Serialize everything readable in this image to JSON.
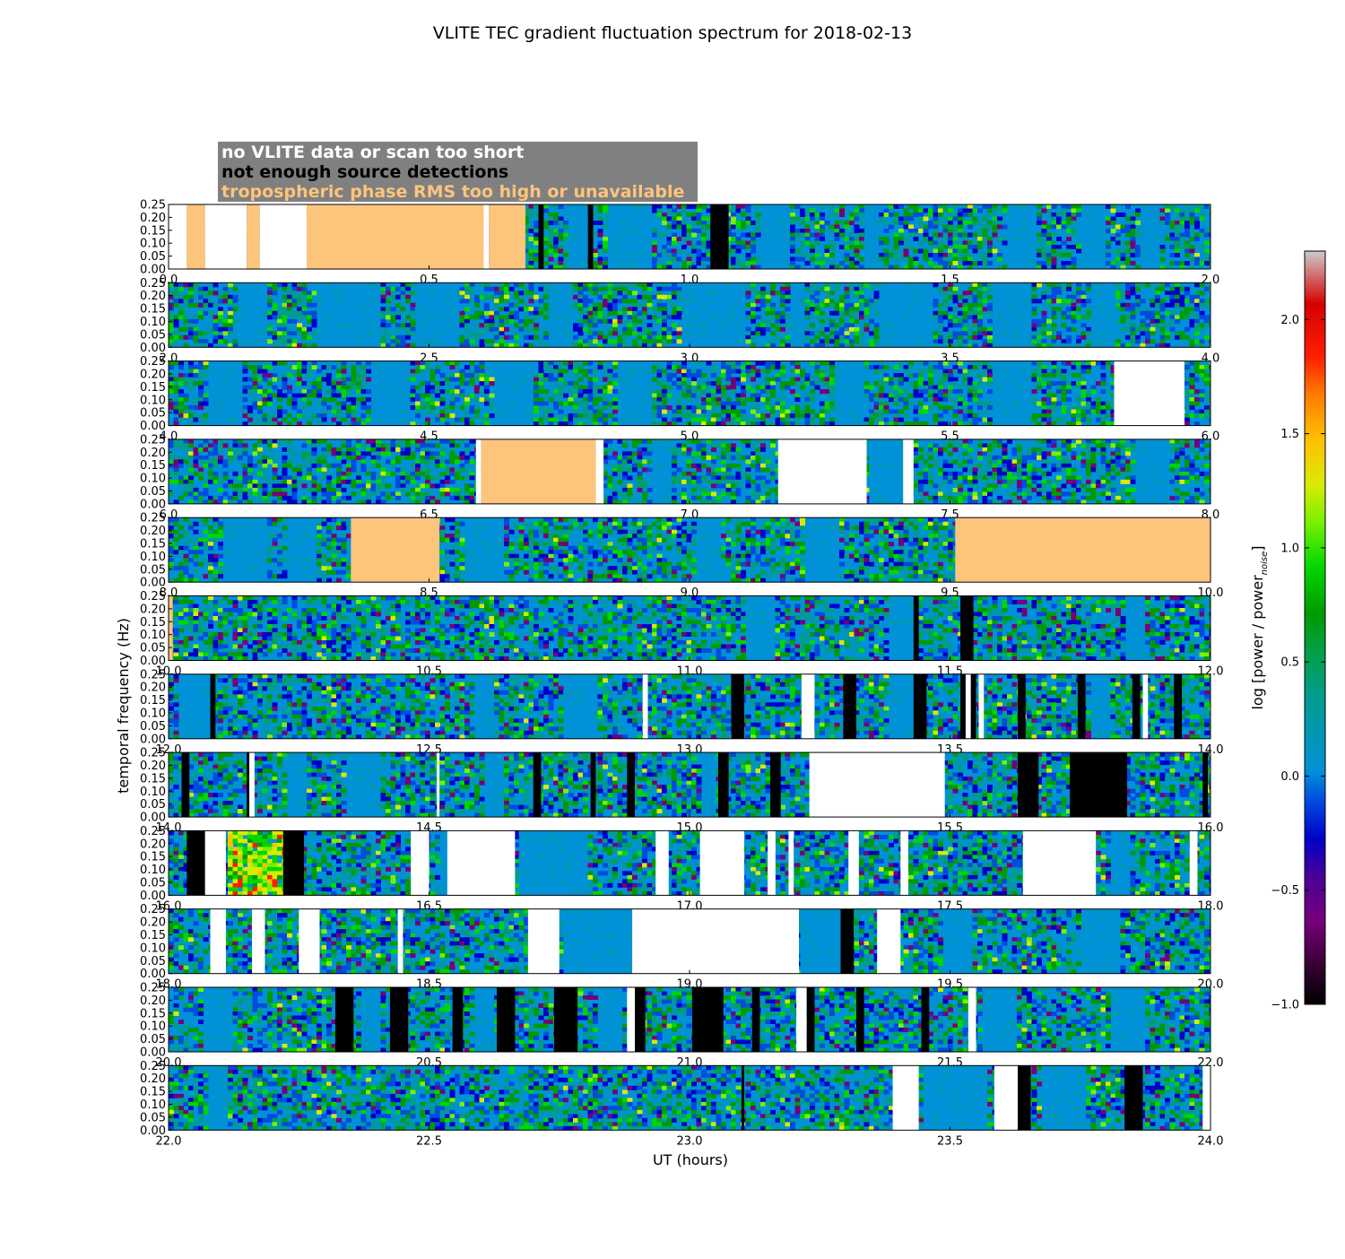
{
  "colors": {
    "no_data": "#ffffff",
    "no_detect": "#000000",
    "tropo": "#fdc47c",
    "baseline": "#0091d7",
    "legend_bg": "#808080"
  },
  "chart_data": {
    "type": "heatmap",
    "title": "VLITE TEC gradient fluctuation spectrum for 2018-02-13",
    "xlabel": "UT (hours)",
    "ylabel": "temporal frequency (Hz)",
    "yticks": [
      "0.00",
      "0.05",
      "0.10",
      "0.15",
      "0.20",
      "0.25"
    ],
    "ylim": [
      0,
      0.25
    ],
    "colorbar": {
      "label": "log [power / power",
      "label_sub": "noise",
      "ticks": [
        "2.0",
        "1.5",
        "1.0",
        "0.5",
        "0.0",
        "−0.5",
        "−1.0"
      ],
      "range": [
        -1.0,
        2.3
      ]
    },
    "legend": [
      {
        "label": "no VLITE data or scan too short",
        "color": "#ffffff"
      },
      {
        "label": "not enough source detections",
        "color": "#000000"
      },
      {
        "label": "tropospheric phase RMS too high or unavailable",
        "color": "#fdc47c"
      }
    ],
    "panels": [
      {
        "start": 0,
        "ticks": [
          "0.0",
          "0.5",
          "1.0",
          "1.5",
          "2.0"
        ],
        "masks": [
          {
            "from": 0.0,
            "to": 0.035,
            "kind": "no_data"
          },
          {
            "from": 0.035,
            "to": 0.07,
            "kind": "tropo"
          },
          {
            "from": 0.07,
            "to": 0.15,
            "kind": "no_data"
          },
          {
            "from": 0.15,
            "to": 0.175,
            "kind": "tropo"
          },
          {
            "from": 0.175,
            "to": 0.265,
            "kind": "no_data"
          },
          {
            "from": 0.265,
            "to": 0.605,
            "kind": "tropo"
          },
          {
            "from": 0.605,
            "to": 0.615,
            "kind": "no_data"
          },
          {
            "from": 0.615,
            "to": 0.685,
            "kind": "tropo"
          },
          {
            "from": 0.71,
            "to": 0.72,
            "kind": "no_detect"
          },
          {
            "from": 0.805,
            "to": 0.815,
            "kind": "no_detect"
          },
          {
            "from": 1.04,
            "to": 1.075,
            "kind": "no_detect"
          }
        ],
        "quiet": [
          [
            0.76,
            0.8
          ],
          [
            0.84,
            0.92
          ],
          [
            1.13,
            1.19
          ],
          [
            1.33,
            1.36
          ],
          [
            1.6,
            1.66
          ],
          [
            1.75,
            1.79
          ],
          [
            1.86,
            1.9
          ]
        ]
      },
      {
        "start": 2,
        "ticks": [
          "2.0",
          "2.5",
          "3.0",
          "3.5",
          "4.0"
        ],
        "masks": [],
        "quiet": [
          [
            2.13,
            2.18
          ],
          [
            2.28,
            2.4
          ],
          [
            2.47,
            2.55
          ],
          [
            2.72,
            2.77
          ],
          [
            2.98,
            3.1
          ],
          [
            3.19,
            3.22
          ],
          [
            3.36,
            3.46
          ],
          [
            3.58,
            3.65
          ],
          [
            3.77,
            3.81
          ]
        ]
      },
      {
        "start": 4,
        "ticks": [
          "4.0",
          "4.5",
          "5.0",
          "5.5",
          "6.0"
        ],
        "masks": [
          {
            "from": 5.815,
            "to": 5.95,
            "kind": "no_data"
          }
        ],
        "quiet": [
          [
            4.07,
            4.14
          ],
          [
            4.38,
            4.46
          ],
          [
            4.62,
            4.7
          ],
          [
            4.86,
            4.92
          ],
          [
            5.27,
            5.33
          ],
          [
            5.58,
            5.65
          ]
        ]
      },
      {
        "start": 6,
        "ticks": [
          "6.0",
          "6.5",
          "7.0",
          "7.5",
          "8.0"
        ],
        "masks": [
          {
            "from": 6.59,
            "to": 6.6,
            "kind": "no_data"
          },
          {
            "from": 6.6,
            "to": 6.82,
            "kind": "tropo"
          },
          {
            "from": 6.82,
            "to": 6.835,
            "kind": "no_data"
          },
          {
            "from": 7.17,
            "to": 7.34,
            "kind": "no_data"
          },
          {
            "from": 7.41,
            "to": 7.43,
            "kind": "no_data"
          }
        ],
        "quiet": [
          [
            6.92,
            6.96
          ],
          [
            7.34,
            7.41
          ],
          [
            7.85,
            7.92
          ]
        ]
      },
      {
        "start": 8,
        "ticks": [
          "8.0",
          "8.5",
          "9.0",
          "9.5",
          "10.0"
        ],
        "masks": [
          {
            "from": 8.35,
            "to": 8.52,
            "kind": "tropo"
          },
          {
            "from": 9.51,
            "to": 10.0,
            "kind": "tropo"
          }
        ],
        "quiet": [
          [
            8.1,
            8.18
          ],
          [
            8.22,
            8.28
          ],
          [
            8.56,
            8.64
          ],
          [
            9.01,
            9.06
          ],
          [
            9.22,
            9.28
          ]
        ]
      },
      {
        "start": 10,
        "ticks": [
          "10.0",
          "10.5",
          "11.0",
          "11.5",
          "12.0"
        ],
        "masks": [
          {
            "from": 10.0,
            "to": 10.008,
            "kind": "tropo"
          },
          {
            "from": 11.43,
            "to": 11.44,
            "kind": "no_detect"
          },
          {
            "from": 11.52,
            "to": 11.545,
            "kind": "no_detect"
          }
        ],
        "quiet": [
          [
            11.1,
            11.16
          ],
          [
            11.38,
            11.43
          ],
          [
            11.83,
            11.87
          ]
        ]
      },
      {
        "start": 12,
        "ticks": [
          "12.0",
          "12.5",
          "13.0",
          "13.5",
          "14.0"
        ],
        "masks": [
          {
            "from": 12.08,
            "to": 12.09,
            "kind": "no_detect"
          },
          {
            "from": 12.91,
            "to": 12.92,
            "kind": "no_data"
          },
          {
            "from": 13.08,
            "to": 13.105,
            "kind": "no_detect"
          },
          {
            "from": 13.215,
            "to": 13.24,
            "kind": "no_data"
          },
          {
            "from": 13.295,
            "to": 13.32,
            "kind": "no_detect"
          },
          {
            "from": 13.43,
            "to": 13.455,
            "kind": "no_detect"
          },
          {
            "from": 13.52,
            "to": 13.53,
            "kind": "no_detect"
          },
          {
            "from": 13.53,
            "to": 13.54,
            "kind": "no_data"
          },
          {
            "from": 13.54,
            "to": 13.55,
            "kind": "no_detect"
          },
          {
            "from": 13.555,
            "to": 13.565,
            "kind": "no_data"
          },
          {
            "from": 13.63,
            "to": 13.645,
            "kind": "no_detect"
          },
          {
            "from": 13.745,
            "to": 13.76,
            "kind": "no_detect"
          },
          {
            "from": 13.85,
            "to": 13.865,
            "kind": "no_detect"
          },
          {
            "from": 13.87,
            "to": 13.88,
            "kind": "no_data"
          },
          {
            "from": 13.93,
            "to": 13.945,
            "kind": "no_detect"
          }
        ],
        "quiet": [
          [
            12.01,
            12.08
          ],
          [
            12.58,
            12.62
          ],
          [
            12.75,
            12.82
          ],
          [
            13.38,
            13.43
          ],
          [
            13.77,
            13.8
          ]
        ]
      },
      {
        "start": 14,
        "ticks": [
          "14.0",
          "14.5",
          "15.0",
          "15.5",
          "16.0"
        ],
        "masks": [
          {
            "from": 14.025,
            "to": 14.04,
            "kind": "no_detect"
          },
          {
            "from": 14.15,
            "to": 14.155,
            "kind": "no_detect"
          },
          {
            "from": 14.155,
            "to": 14.165,
            "kind": "no_data"
          },
          {
            "from": 14.515,
            "to": 14.52,
            "kind": "no_data"
          },
          {
            "from": 14.7,
            "to": 14.715,
            "kind": "no_detect"
          },
          {
            "from": 14.81,
            "to": 14.82,
            "kind": "no_detect"
          },
          {
            "from": 14.88,
            "to": 14.895,
            "kind": "no_detect"
          },
          {
            "from": 15.055,
            "to": 15.075,
            "kind": "no_detect"
          },
          {
            "from": 15.155,
            "to": 15.175,
            "kind": "no_detect"
          },
          {
            "from": 15.23,
            "to": 15.24,
            "kind": "no_data"
          },
          {
            "from": 15.24,
            "to": 15.49,
            "kind": "no_data"
          },
          {
            "from": 15.63,
            "to": 15.67,
            "kind": "no_detect"
          },
          {
            "from": 15.73,
            "to": 15.84,
            "kind": "no_detect"
          },
          {
            "from": 15.985,
            "to": 15.995,
            "kind": "no_detect"
          }
        ],
        "quiet": [
          [
            14.22,
            14.26
          ],
          [
            14.34,
            14.4
          ],
          [
            14.6,
            14.64
          ],
          [
            15.02,
            15.05
          ],
          [
            15.32,
            15.36
          ]
        ]
      },
      {
        "start": 16,
        "ticks": [
          "16.0",
          "16.5",
          "17.0",
          "17.5",
          "18.0"
        ],
        "masks": [
          {
            "from": 16.035,
            "to": 16.07,
            "kind": "no_detect"
          },
          {
            "from": 16.07,
            "to": 16.11,
            "kind": "no_data"
          },
          {
            "from": 16.11,
            "to": 16.14,
            "kind": "hot"
          },
          {
            "from": 16.14,
            "to": 16.22,
            "kind": "hot"
          },
          {
            "from": 16.22,
            "to": 16.26,
            "kind": "no_detect"
          },
          {
            "from": 16.465,
            "to": 16.5,
            "kind": "no_data"
          },
          {
            "from": 16.535,
            "to": 16.665,
            "kind": "no_data"
          },
          {
            "from": 16.935,
            "to": 16.96,
            "kind": "no_data"
          },
          {
            "from": 17.02,
            "to": 17.105,
            "kind": "no_data"
          },
          {
            "from": 17.15,
            "to": 17.165,
            "kind": "no_data"
          },
          {
            "from": 17.19,
            "to": 17.2,
            "kind": "no_data"
          },
          {
            "from": 17.305,
            "to": 17.325,
            "kind": "no_data"
          },
          {
            "from": 17.405,
            "to": 17.42,
            "kind": "no_data"
          },
          {
            "from": 17.64,
            "to": 17.78,
            "kind": "no_data"
          },
          {
            "from": 17.96,
            "to": 17.975,
            "kind": "no_data"
          }
        ],
        "quiet": [
          [
            16.52,
            16.535
          ],
          [
            16.67,
            16.8
          ],
          [
            17.8,
            17.84
          ]
        ]
      },
      {
        "start": 18,
        "ticks": [
          "18.0",
          "18.5",
          "19.0",
          "19.5",
          "20.0"
        ],
        "masks": [
          {
            "from": 18.08,
            "to": 18.11,
            "kind": "no_data"
          },
          {
            "from": 18.16,
            "to": 18.185,
            "kind": "no_data"
          },
          {
            "from": 18.25,
            "to": 18.29,
            "kind": "no_data"
          },
          {
            "from": 18.44,
            "to": 18.45,
            "kind": "no_data"
          },
          {
            "from": 18.69,
            "to": 18.75,
            "kind": "no_data"
          },
          {
            "from": 18.89,
            "to": 19.21,
            "kind": "no_data"
          },
          {
            "from": 19.29,
            "to": 19.315,
            "kind": "no_detect"
          },
          {
            "from": 19.36,
            "to": 19.405,
            "kind": "no_data"
          }
        ],
        "quiet": [
          [
            18.75,
            18.89
          ],
          [
            19.21,
            19.29
          ],
          [
            19.48,
            19.54
          ],
          [
            19.75,
            19.82
          ]
        ]
      },
      {
        "start": 20,
        "ticks": [
          "20.0",
          "20.5",
          "21.0",
          "21.5",
          "22.0"
        ],
        "masks": [
          {
            "from": 20.32,
            "to": 20.355,
            "kind": "no_detect"
          },
          {
            "from": 20.425,
            "to": 20.46,
            "kind": "no_detect"
          },
          {
            "from": 20.545,
            "to": 20.565,
            "kind": "no_detect"
          },
          {
            "from": 20.63,
            "to": 20.665,
            "kind": "no_detect"
          },
          {
            "from": 20.74,
            "to": 20.785,
            "kind": "no_detect"
          },
          {
            "from": 20.88,
            "to": 20.895,
            "kind": "no_data"
          },
          {
            "from": 20.895,
            "to": 20.915,
            "kind": "no_detect"
          },
          {
            "from": 21.005,
            "to": 21.065,
            "kind": "no_detect"
          },
          {
            "from": 21.12,
            "to": 21.135,
            "kind": "no_detect"
          },
          {
            "from": 21.205,
            "to": 21.225,
            "kind": "no_data"
          },
          {
            "from": 21.225,
            "to": 21.24,
            "kind": "no_detect"
          },
          {
            "from": 21.32,
            "to": 21.335,
            "kind": "no_detect"
          },
          {
            "from": 21.445,
            "to": 21.46,
            "kind": "no_detect"
          },
          {
            "from": 21.535,
            "to": 21.55,
            "kind": "no_data"
          }
        ],
        "quiet": [
          [
            20.06,
            20.12
          ],
          [
            20.36,
            20.4
          ],
          [
            20.58,
            20.62
          ],
          [
            20.82,
            20.87
          ],
          [
            21.56,
            21.62
          ],
          [
            21.8,
            21.87
          ]
        ]
      },
      {
        "start": 22,
        "ticks": [
          "22.0",
          "22.5",
          "23.0",
          "23.5",
          "24.0"
        ],
        "masks": [
          {
            "from": 23.1,
            "to": 23.105,
            "kind": "no_detect"
          },
          {
            "from": 23.39,
            "to": 23.44,
            "kind": "no_data"
          },
          {
            "from": 23.585,
            "to": 23.63,
            "kind": "no_data"
          },
          {
            "from": 23.63,
            "to": 23.655,
            "kind": "no_detect"
          },
          {
            "from": 23.835,
            "to": 23.87,
            "kind": "no_detect"
          },
          {
            "from": 23.985,
            "to": 24.0,
            "kind": "no_data"
          }
        ],
        "quiet": [
          [
            22.07,
            22.11
          ],
          [
            23.44,
            23.57
          ],
          [
            23.67,
            23.76
          ]
        ]
      }
    ]
  }
}
